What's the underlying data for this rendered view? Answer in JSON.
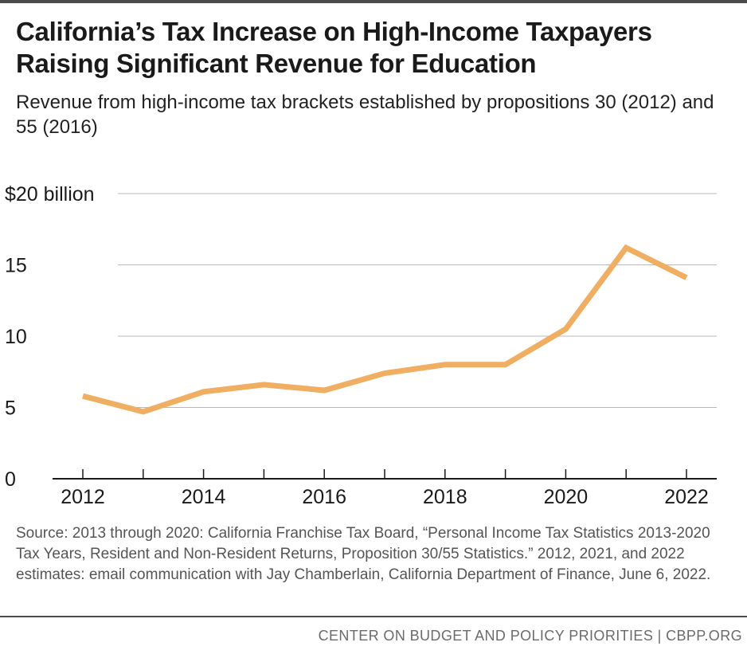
{
  "title_lines": [
    "California’s Tax Increase on High-Income Taxpayers",
    "Raising Significant Revenue for Education"
  ],
  "subtitle": "Revenue from high-income tax brackets established by propositions 30 (2012) and 55 (2016)",
  "source": "Source: 2013 through 2020: California Franchise Tax Board, “Personal Income Tax Statistics 2013-2020 Tax Years, Resident and Non-Resident Returns, Proposition 30/55 Statistics.” 2012, 2021, and 2022 estimates: email communication with Jay Chamberlain, California Department of Finance, June 6, 2022.",
  "footer": "CENTER ON BUDGET AND POLICY PRIORITIES | CBPP.ORG",
  "colors": {
    "line": "#F0AE62",
    "grid": "#b8b8b8",
    "axis": "#1a1a1a"
  },
  "chart_data": {
    "type": "line",
    "title": "California’s Tax Increase on High-Income Taxpayers Raising Significant Revenue for Education",
    "subtitle": "Revenue from high-income tax brackets established by propositions 30 (2012) and 55 (2016)",
    "xlabel": "",
    "ylabel": "$ billion",
    "x": [
      2012,
      2013,
      2014,
      2015,
      2016,
      2017,
      2018,
      2019,
      2020,
      2021,
      2022
    ],
    "series": [
      {
        "name": "Revenue",
        "values": [
          5.8,
          4.7,
          6.1,
          6.6,
          6.2,
          7.4,
          8.0,
          8.0,
          10.5,
          16.2,
          14.1
        ]
      }
    ],
    "xlim": [
      2011.75,
      2022.25
    ],
    "ylim": [
      0,
      20
    ],
    "yticks": [
      0,
      5,
      10,
      15,
      20
    ],
    "ytick_labels": [
      "0",
      "5",
      "10",
      "15",
      "$20 billion"
    ],
    "xticks": [
      2012,
      2014,
      2016,
      2018,
      2020,
      2022
    ],
    "xtick_labels": [
      "2012",
      "2014",
      "2016",
      "2018",
      "2020",
      "2022"
    ],
    "grid": true,
    "legend": "none"
  }
}
